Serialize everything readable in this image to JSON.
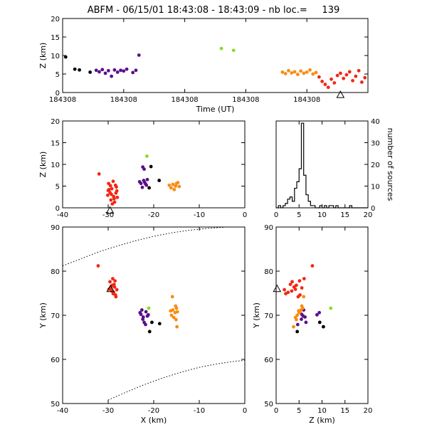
{
  "title": "ABFM - 06/15/01 18:43:08 - 18:43:09 - nb loc.=     139",
  "colors": {
    "black": "#000000",
    "purple": "#5a0f8c",
    "green": "#7fe21c",
    "orange": "#fa8c14",
    "red": "#f02814"
  },
  "chart_data": [
    {
      "panel": "time-height",
      "type": "scatter",
      "xlabel": "Time (UT)",
      "ylabel": "Z (km)",
      "xlim": [
        0,
        1
      ],
      "ylim": [
        0,
        20
      ],
      "x_ticks": [
        0,
        0.2,
        0.4,
        0.6,
        0.8
      ],
      "x_tick_labels": [
        "184308",
        "184308",
        "184308",
        "184308",
        "184308"
      ],
      "y_ticks": [
        0,
        5,
        10,
        15,
        20
      ],
      "series": [
        {
          "color": "black",
          "points": [
            [
              0.01,
              9.6
            ],
            [
              0.04,
              6.3
            ],
            [
              0.055,
              6.1
            ],
            [
              0.09,
              5.5
            ]
          ]
        },
        {
          "color": "purple",
          "points": [
            [
              0.11,
              6.0
            ],
            [
              0.12,
              5.6
            ],
            [
              0.13,
              6.2
            ],
            [
              0.14,
              5.2
            ],
            [
              0.15,
              5.9
            ],
            [
              0.16,
              4.4
            ],
            [
              0.17,
              6.1
            ],
            [
              0.18,
              5.5
            ],
            [
              0.19,
              6.0
            ],
            [
              0.2,
              5.8
            ],
            [
              0.21,
              6.3
            ],
            [
              0.23,
              5.4
            ],
            [
              0.24,
              6.0
            ],
            [
              0.25,
              10.1
            ]
          ]
        },
        {
          "color": "green",
          "points": [
            [
              0.52,
              11.9
            ],
            [
              0.56,
              11.4
            ]
          ]
        },
        {
          "color": "orange",
          "points": [
            [
              0.72,
              5.5
            ],
            [
              0.73,
              5.1
            ],
            [
              0.74,
              5.9
            ],
            [
              0.75,
              5.3
            ],
            [
              0.76,
              5.6
            ],
            [
              0.77,
              4.9
            ],
            [
              0.78,
              5.8
            ],
            [
              0.79,
              5.2
            ],
            [
              0.8,
              5.5
            ],
            [
              0.81,
              6.1
            ],
            [
              0.82,
              5.0
            ],
            [
              0.83,
              5.4
            ]
          ]
        },
        {
          "color": "red",
          "points": [
            [
              0.84,
              4.2
            ],
            [
              0.85,
              3.0
            ],
            [
              0.86,
              2.2
            ],
            [
              0.87,
              1.4
            ],
            [
              0.88,
              3.6
            ],
            [
              0.89,
              2.6
            ],
            [
              0.9,
              4.6
            ],
            [
              0.91,
              5.2
            ],
            [
              0.92,
              3.8
            ],
            [
              0.93,
              4.8
            ],
            [
              0.94,
              5.6
            ],
            [
              0.95,
              3.2
            ],
            [
              0.96,
              4.4
            ],
            [
              0.97,
              5.9
            ],
            [
              0.98,
              2.8
            ],
            [
              0.99,
              4.0
            ]
          ]
        }
      ],
      "markers": [
        {
          "shape": "triangle",
          "x": 0.91,
          "y": -0.6
        }
      ]
    },
    {
      "panel": "x-z",
      "type": "scatter",
      "xlabel": "",
      "ylabel": "Z (km)",
      "xlim": [
        -40,
        0
      ],
      "ylim": [
        0,
        20
      ],
      "x_ticks": [
        -40,
        -30,
        -20,
        -10,
        0
      ],
      "y_ticks": [
        0,
        5,
        10,
        15,
        20
      ],
      "series": [
        {
          "color": "red",
          "points": [
            [
              -32,
              7.8
            ],
            [
              -29.6,
              3.5
            ],
            [
              -29.2,
              4.4
            ],
            [
              -28.8,
              2.6
            ],
            [
              -28.4,
              5.2
            ],
            [
              -29.9,
              5.6
            ],
            [
              -28.1,
              3.9
            ],
            [
              -29.4,
              1.8
            ],
            [
              -28.6,
              1.3
            ],
            [
              -30.1,
              2.9
            ],
            [
              -28.9,
              6.1
            ],
            [
              -29.3,
              3.1
            ],
            [
              -28.2,
              4.8
            ],
            [
              -29.8,
              4.2
            ],
            [
              -28.7,
              2.1
            ],
            [
              -29.5,
              5.1
            ],
            [
              -28.3,
              3.4
            ],
            [
              -30.0,
              4.0
            ],
            [
              -28.0,
              2.4
            ],
            [
              -29.1,
              0.9
            ]
          ]
        },
        {
          "color": "purple",
          "points": [
            [
              -22.8,
              5.6
            ],
            [
              -22.2,
              6.3
            ],
            [
              -21.6,
              5.2
            ],
            [
              -23.1,
              6.0
            ],
            [
              -22.0,
              5.9
            ],
            [
              -21.4,
              6.5
            ],
            [
              -22.5,
              4.7
            ],
            [
              -21.8,
              5.5
            ],
            [
              -22.1,
              8.9
            ],
            [
              -22.4,
              9.4
            ]
          ]
        },
        {
          "color": "black",
          "points": [
            [
              -21.0,
              4.6
            ],
            [
              -20.6,
              9.5
            ],
            [
              -18.8,
              6.3
            ]
          ]
        },
        {
          "color": "green",
          "points": [
            [
              -21.5,
              11.9
            ]
          ]
        },
        {
          "color": "orange",
          "points": [
            [
              -15.8,
              5.4
            ],
            [
              -15.2,
              5.0
            ],
            [
              -16.2,
              4.6
            ],
            [
              -14.7,
              5.8
            ],
            [
              -15.5,
              4.2
            ],
            [
              -16.6,
              5.2
            ],
            [
              -14.4,
              4.9
            ],
            [
              -15.0,
              5.6
            ]
          ]
        }
      ],
      "markers": [
        {
          "shape": "triangle",
          "x": -29.6,
          "y": -0.6
        }
      ]
    },
    {
      "panel": "histogram",
      "type": "bar",
      "xlabel": "",
      "ylabel": "number of sources",
      "xlim": [
        0,
        20
      ],
      "ylim": [
        0,
        40
      ],
      "x_ticks": [
        0,
        5,
        10,
        15,
        20
      ],
      "y_ticks": [
        0,
        10,
        20,
        30,
        40
      ],
      "bin_width": 0.5,
      "bin_starts": [
        0,
        0.5,
        1,
        1.5,
        2,
        2.5,
        3,
        3.5,
        4,
        4.5,
        5,
        5.5,
        6,
        6.5,
        7,
        7.5,
        8,
        8.5,
        9,
        9.5,
        10,
        10.5,
        11,
        11.5,
        12,
        12.5,
        13,
        13.5,
        14,
        14.5,
        15,
        15.5,
        16,
        16.5,
        17,
        17.5,
        18,
        18.5,
        19,
        19.5
      ],
      "values": [
        0,
        1,
        0,
        1,
        2,
        4,
        5,
        3,
        9,
        12,
        18,
        39,
        15,
        6,
        3,
        1,
        1,
        0,
        0,
        1,
        0,
        1,
        0,
        1,
        1,
        0,
        1,
        0,
        0,
        0,
        0,
        0,
        1,
        0,
        0,
        0,
        0,
        0,
        0,
        0
      ]
    },
    {
      "panel": "x-y",
      "type": "scatter",
      "xlabel": "X (km)",
      "ylabel": "Y (km)",
      "xlim": [
        -40,
        0
      ],
      "ylim": [
        50,
        90
      ],
      "x_ticks": [
        -40,
        -30,
        -20,
        -10,
        0
      ],
      "y_ticks": [
        50,
        60,
        70,
        80,
        90
      ],
      "series": [
        {
          "color": "red",
          "points": [
            [
              -32.2,
              81.2
            ],
            [
              -29.6,
              77.6
            ],
            [
              -29.1,
              76.8
            ],
            [
              -28.8,
              75.2
            ],
            [
              -28.4,
              74.6
            ],
            [
              -29.4,
              76.2
            ],
            [
              -28.6,
              76.4
            ],
            [
              -28.1,
              75.8
            ],
            [
              -29.0,
              78.3
            ],
            [
              -28.7,
              77.0
            ],
            [
              -28.3,
              74.2
            ],
            [
              -29.8,
              75.9
            ],
            [
              -28.9,
              74.9
            ],
            [
              -28.5,
              77.8
            ],
            [
              -29.2,
              75.5
            ]
          ]
        },
        {
          "color": "purple",
          "points": [
            [
              -22.8,
              70.2
            ],
            [
              -22.3,
              69.6
            ],
            [
              -21.7,
              70.8
            ],
            [
              -22.6,
              71.2
            ],
            [
              -21.4,
              69.8
            ],
            [
              -22.1,
              68.4
            ],
            [
              -21.8,
              67.9
            ],
            [
              -22.4,
              69.1
            ],
            [
              -21.2,
              70.1
            ],
            [
              -23.0,
              70.6
            ]
          ]
        },
        {
          "color": "black",
          "points": [
            [
              -20.9,
              66.3
            ],
            [
              -20.4,
              68.4
            ],
            [
              -18.7,
              68.1
            ]
          ]
        },
        {
          "color": "green",
          "points": [
            [
              -21.1,
              71.6
            ]
          ]
        },
        {
          "color": "orange",
          "points": [
            [
              -15.8,
              71.2
            ],
            [
              -15.3,
              70.6
            ],
            [
              -16.1,
              70.0
            ],
            [
              -15.0,
              71.6
            ],
            [
              -15.6,
              69.5
            ],
            [
              -14.8,
              70.8
            ],
            [
              -16.3,
              71.0
            ],
            [
              -15.2,
              72.1
            ],
            [
              -15.9,
              74.2
            ],
            [
              -15.1,
              69.0
            ],
            [
              -14.9,
              67.4
            ]
          ]
        }
      ],
      "markers": [
        {
          "shape": "triangle",
          "x": -29.5,
          "y": 76.0
        }
      ],
      "curves": [
        {
          "style": "dotted",
          "points": [
            [
              -40,
              81.2
            ],
            [
              -36,
              82.8
            ],
            [
              -32,
              84.4
            ],
            [
              -28,
              85.7
            ],
            [
              -24,
              86.9
            ],
            [
              -20,
              87.9
            ],
            [
              -16,
              88.7
            ],
            [
              -12,
              89.3
            ],
            [
              -8,
              89.7
            ],
            [
              -4,
              90
            ],
            [
              0,
              90
            ]
          ]
        },
        {
          "style": "dotted",
          "points": [
            [
              -30,
              50.8
            ],
            [
              -26,
              52.6
            ],
            [
              -22,
              54.3
            ],
            [
              -18,
              55.8
            ],
            [
              -14,
              57.1
            ],
            [
              -10,
              58.2
            ],
            [
              -6,
              59.0
            ],
            [
              -2,
              59.6
            ],
            [
              0,
              59.8
            ]
          ]
        }
      ]
    },
    {
      "panel": "z-y",
      "type": "scatter",
      "xlabel": "Z (km)",
      "ylabel": "Y (km)",
      "xlim": [
        0,
        20
      ],
      "ylim": [
        50,
        90
      ],
      "x_ticks": [
        0,
        5,
        10,
        15,
        20
      ],
      "y_ticks": [
        50,
        60,
        70,
        80,
        90
      ],
      "series": [
        {
          "color": "red",
          "points": [
            [
              7.9,
              81.2
            ],
            [
              3.5,
              77.6
            ],
            [
              4.4,
              76.8
            ],
            [
              2.6,
              75.2
            ],
            [
              5.2,
              74.6
            ],
            [
              5.6,
              76.2
            ],
            [
              3.9,
              76.4
            ],
            [
              1.8,
              75.8
            ],
            [
              6.1,
              78.3
            ],
            [
              3.1,
              77.0
            ],
            [
              4.8,
              74.2
            ],
            [
              4.2,
              75.9
            ],
            [
              2.1,
              74.9
            ],
            [
              5.1,
              77.8
            ],
            [
              3.4,
              75.5
            ]
          ]
        },
        {
          "color": "purple",
          "points": [
            [
              5.6,
              70.2
            ],
            [
              6.3,
              69.6
            ],
            [
              5.2,
              70.8
            ],
            [
              6.0,
              71.2
            ],
            [
              5.9,
              69.8
            ],
            [
              6.5,
              68.4
            ],
            [
              4.7,
              67.9
            ],
            [
              5.5,
              69.1
            ],
            [
              8.9,
              70.1
            ],
            [
              9.4,
              70.6
            ]
          ]
        },
        {
          "color": "black",
          "points": [
            [
              4.6,
              66.3
            ],
            [
              9.5,
              68.4
            ],
            [
              10.3,
              67.4
            ]
          ]
        },
        {
          "color": "green",
          "points": [
            [
              11.9,
              71.6
            ]
          ]
        },
        {
          "color": "orange",
          "points": [
            [
              5.4,
              71.2
            ],
            [
              5.0,
              70.6
            ],
            [
              4.6,
              70.0
            ],
            [
              5.8,
              71.6
            ],
            [
              4.2,
              69.5
            ],
            [
              5.2,
              70.8
            ],
            [
              4.9,
              71.0
            ],
            [
              5.6,
              72.1
            ],
            [
              6.0,
              74.2
            ],
            [
              4.4,
              69.0
            ],
            [
              3.8,
              67.4
            ]
          ]
        }
      ],
      "markers": [
        {
          "shape": "triangle",
          "x": 0.2,
          "y": 76.0
        }
      ]
    }
  ]
}
